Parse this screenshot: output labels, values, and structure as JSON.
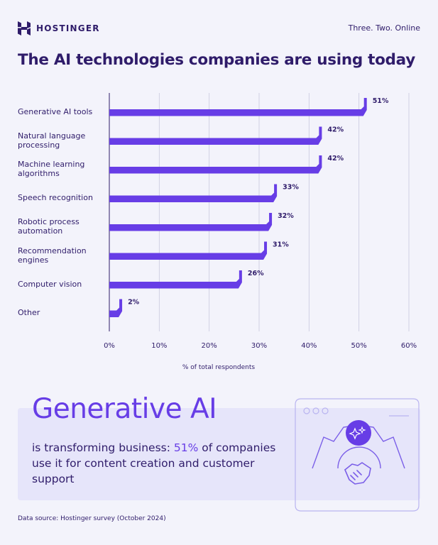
{
  "brand": {
    "logo_text": "HOSTINGER",
    "tagline": "Three. Two. Online"
  },
  "title": "The AI technologies companies are using today",
  "chart_data": {
    "type": "bar",
    "orientation": "horizontal",
    "title": "The AI technologies companies are using today",
    "categories": [
      [
        "Generative AI tools"
      ],
      [
        "Natural language",
        "processing"
      ],
      [
        "Machine learning",
        "algorithms"
      ],
      [
        "Speech recognition"
      ],
      [
        "Robotic process",
        "automation"
      ],
      [
        "Recommendation",
        "engines"
      ],
      [
        "Computer vision"
      ],
      [
        "Other"
      ]
    ],
    "values": [
      51,
      42,
      42,
      33,
      32,
      31,
      26,
      2
    ],
    "value_labels": [
      "51%",
      "42%",
      "42%",
      "33%",
      "32%",
      "31%",
      "26%",
      "2%"
    ],
    "xlim": [
      0,
      60
    ],
    "xticks": [
      "0%",
      "10%",
      "20%",
      "30%",
      "40%",
      "50%",
      "60%"
    ],
    "xlabel": "% of total respondents",
    "ylabel": "",
    "grid": "vertical",
    "bar_color": "#673de6"
  },
  "callout": {
    "heading": "Generative AI",
    "body_pre": "is transforming business: ",
    "body_highlight": "51%",
    "body_post": " of companies use it for content creation and customer support"
  },
  "source": "Data source: Hostinger survey (October 2024)",
  "colors": {
    "background": "#f3f3fb",
    "accent": "#673de6",
    "text": "#2f1c6a",
    "callout_bg": "#e6e5fa"
  }
}
